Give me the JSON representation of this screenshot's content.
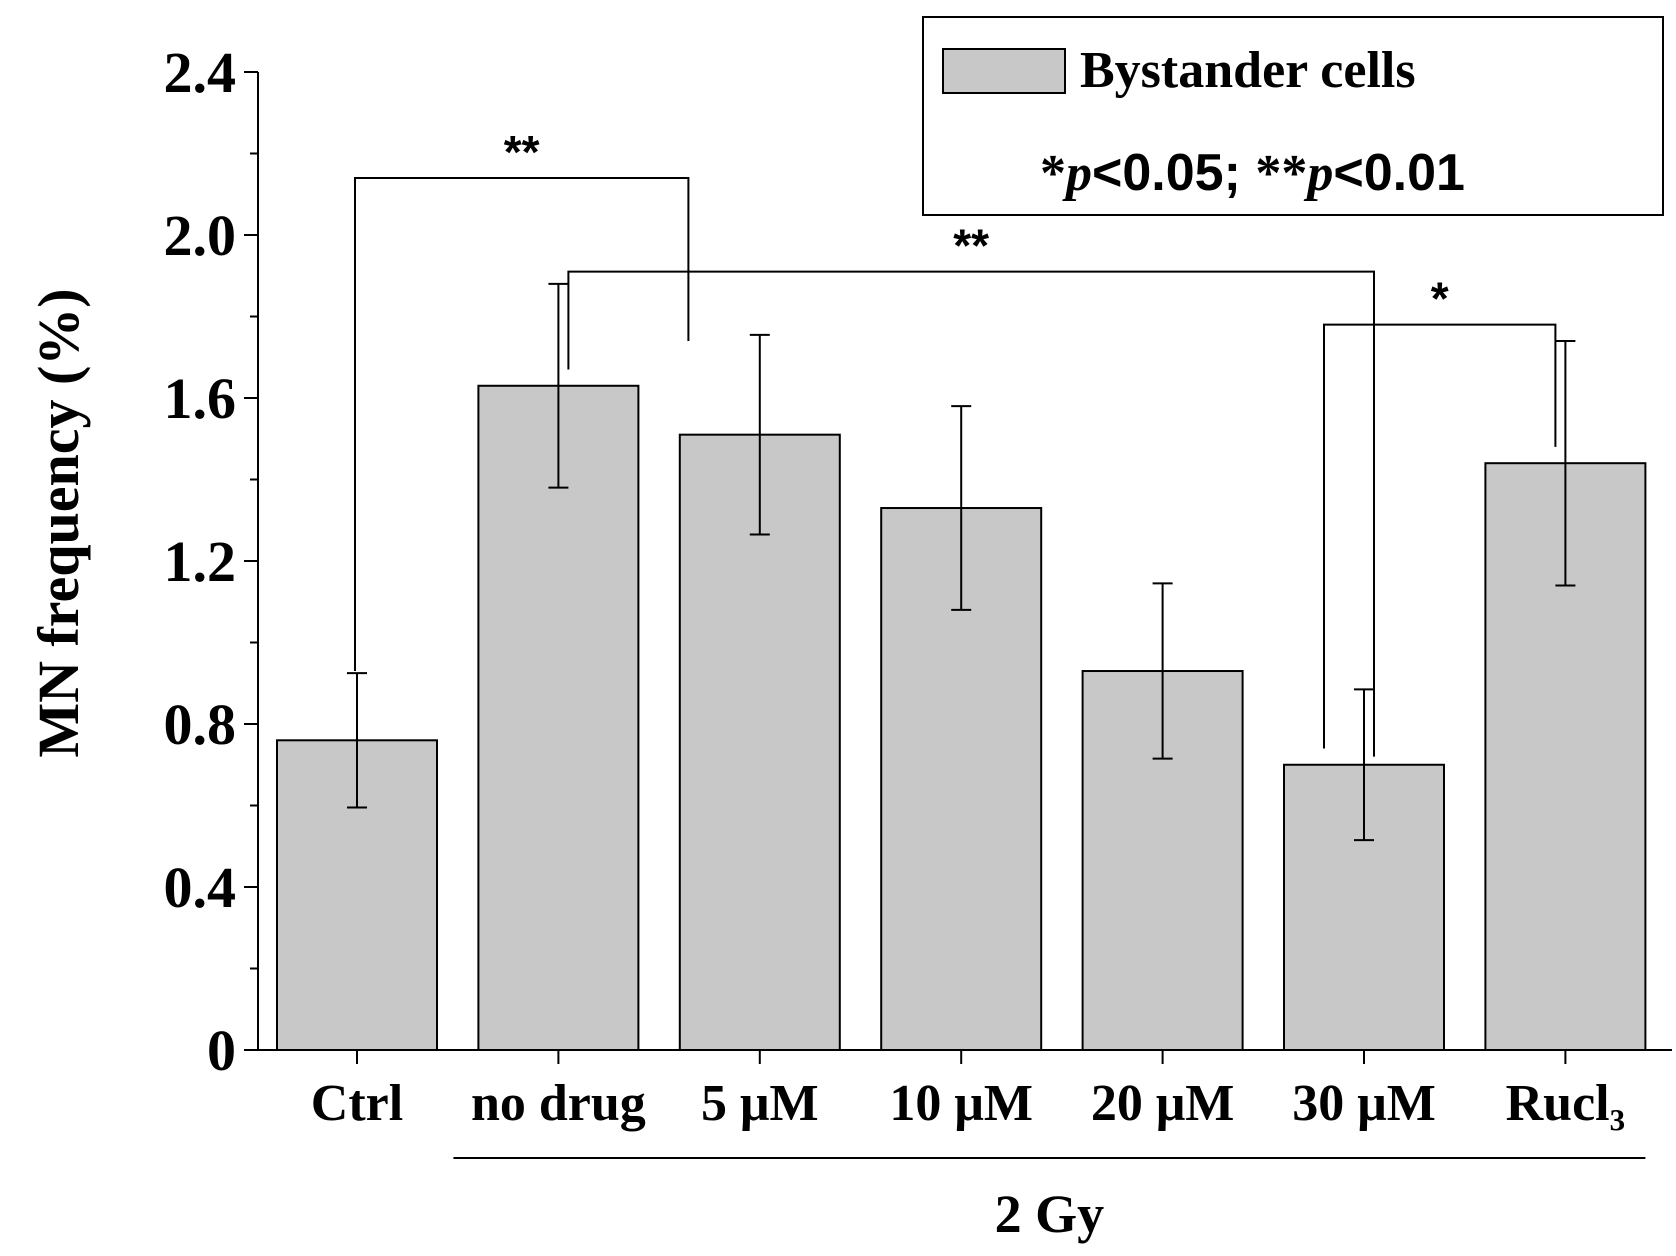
{
  "chart_data": {
    "type": "bar",
    "title": "",
    "xlabel": "",
    "ylabel": "MN frequency (%)",
    "ylim": [
      0,
      2.4
    ],
    "yticks": [
      0,
      0.4,
      0.8,
      1.2,
      1.6,
      2.0,
      2.4
    ],
    "ytick_labels": [
      "0",
      "0.4",
      "0.8",
      "1.2",
      "1.6",
      "2.0",
      "2.4"
    ],
    "categories": [
      "Ctrl",
      "no drug",
      "5 μM",
      "10 μM",
      "20 μM",
      "30 μM",
      "Rucl₃"
    ],
    "series": [
      {
        "name": "Bystander cells",
        "color": "#c8c8c8",
        "values": [
          0.76,
          1.63,
          1.51,
          1.33,
          0.93,
          0.7,
          1.44
        ],
        "errors": [
          0.165,
          0.25,
          0.245,
          0.25,
          0.215,
          0.185,
          0.3
        ]
      }
    ],
    "legend": {
      "position": "top-right",
      "label": "Bystander cells",
      "note_single": "*",
      "note_double": "**",
      "note_p": "p",
      "note_threshold_1": "<0.05; ",
      "note_threshold_2": "<0.01"
    },
    "group_bracket": {
      "label": "2 Gy",
      "from_category": 1,
      "to_category": 6
    },
    "significance": [
      {
        "from": 0,
        "to": 1,
        "label": "**",
        "level": 2.14,
        "drop_from": 0.93,
        "drop_to": 1.74
      },
      {
        "from": 1,
        "to": 5,
        "label": "**",
        "level": 1.91,
        "drop_from": 1.67,
        "drop_to": 0.72
      },
      {
        "from": 5,
        "to": 6,
        "label": "*",
        "level": 1.78,
        "drop_from": 0.74,
        "drop_to": 1.48
      }
    ]
  }
}
